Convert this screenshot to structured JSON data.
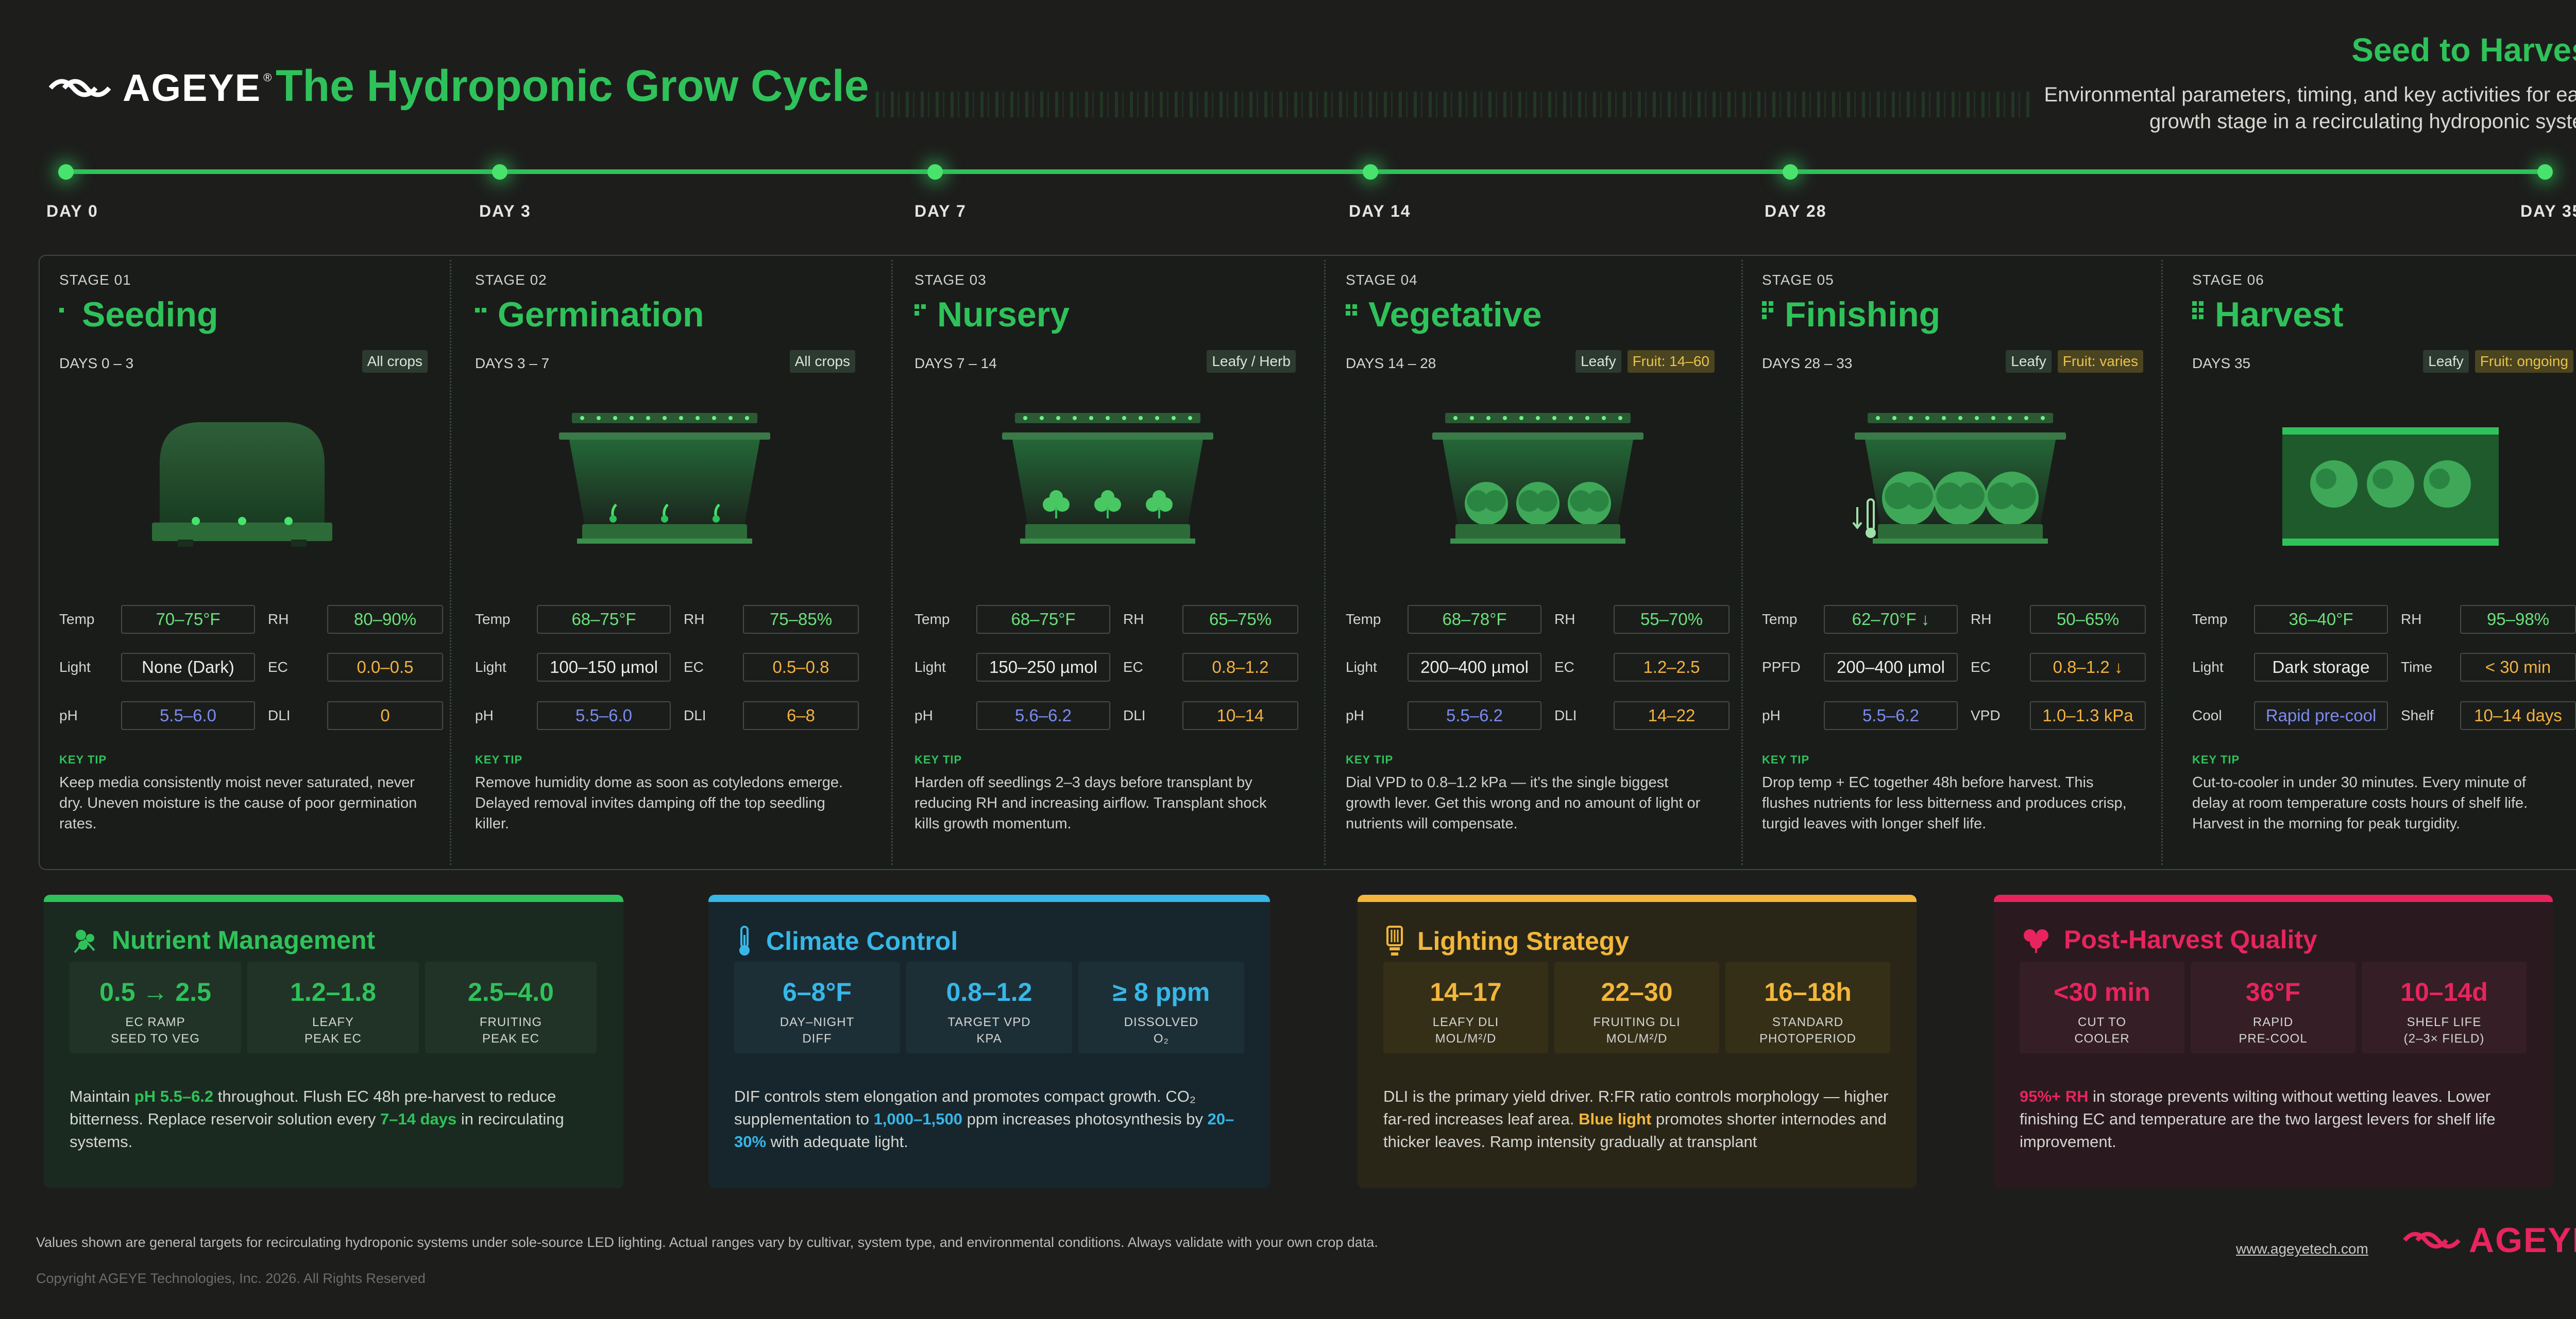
{
  "header": {
    "brand": "AGEYE",
    "title": "The Hydroponic Grow Cycle",
    "right_title": "Seed to Harvest",
    "right_subtitle": "Environmental parameters, timing, and key activities for each growth stage in a recirculating hydroponic system"
  },
  "timeline": [
    "DAY  0",
    "DAY  3",
    "DAY  7",
    "DAY 14",
    "DAY 28",
    "DAY 35"
  ],
  "labels": {
    "key_tip": "KEY TIP"
  },
  "stages": [
    {
      "no": "STAGE 01",
      "name": "Seeding",
      "days": "DAYS  0 – 3",
      "tags": [
        "All crops"
      ],
      "params": [
        {
          "label": "Temp",
          "value": "70–75°F"
        },
        {
          "label": "RH",
          "value": "80–90%"
        },
        {
          "label": "Light",
          "value": "None (Dark)"
        },
        {
          "label": "EC",
          "value": "0.0–0.5"
        },
        {
          "label": "pH",
          "value": "5.5–6.0"
        },
        {
          "label": "DLI",
          "value": "0"
        }
      ],
      "tip": "Keep media consistently moist  never saturated, never dry. Uneven moisture is the cause of poor germination rates."
    },
    {
      "no": "STAGE 02",
      "name": "Germination",
      "days": "DAYS  3 – 7",
      "tags": [
        "All crops"
      ],
      "params": [
        {
          "label": "Temp",
          "value": "68–75°F"
        },
        {
          "label": "RH",
          "value": "75–85%"
        },
        {
          "label": "Light",
          "value": "100–150 µmol"
        },
        {
          "label": "EC",
          "value": "0.5–0.8"
        },
        {
          "label": "pH",
          "value": "5.5–6.0"
        },
        {
          "label": "DLI",
          "value": "6–8"
        }
      ],
      "tip": "Remove humidity dome as soon as cotyledons emerge. Delayed removal invites damping off  the top seedling killer."
    },
    {
      "no": "STAGE 03",
      "name": "Nursery",
      "days": "DAYS  7 – 14",
      "tags": [
        "Leafy / Herb"
      ],
      "params": [
        {
          "label": "Temp",
          "value": "68–75°F"
        },
        {
          "label": "RH",
          "value": "65–75%"
        },
        {
          "label": "Light",
          "value": "150–250 µmol"
        },
        {
          "label": "EC",
          "value": "0.8–1.2"
        },
        {
          "label": "pH",
          "value": "5.6–6.2"
        },
        {
          "label": "DLI",
          "value": "10–14"
        }
      ],
      "tip": "Harden off seedlings 2–3 days before transplant by reducing RH and increasing airflow. Transplant shock kills growth momentum."
    },
    {
      "no": "STAGE 04",
      "name": "Vegetative",
      "days": "DAYS  14 – 28",
      "tags": [
        "Leafy",
        "Fruit: 14–60"
      ],
      "params": [
        {
          "label": "Temp",
          "value": "68–78°F"
        },
        {
          "label": "RH",
          "value": "55–70%"
        },
        {
          "label": "Light",
          "value": "200–400 µmol"
        },
        {
          "label": "EC",
          "value": "1.2–2.5"
        },
        {
          "label": "pH",
          "value": "5.5–6.2"
        },
        {
          "label": "DLI",
          "value": "14–22"
        }
      ],
      "tip": "Dial VPD to 0.8–1.2 kPa — it's the single biggest growth lever. Get this wrong and no amount of light or nutrients will compensate."
    },
    {
      "no": "STAGE 05",
      "name": "Finishing",
      "days": "DAYS  28 – 33",
      "tags": [
        "Leafy",
        "Fruit: varies"
      ],
      "params": [
        {
          "label": "Temp",
          "value": "62–70°F ↓"
        },
        {
          "label": "RH",
          "value": "50–65%"
        },
        {
          "label": "PPFD",
          "value": "200–400 µmol"
        },
        {
          "label": "EC",
          "value": "0.8–1.2 ↓"
        },
        {
          "label": "pH",
          "value": "5.5–6.2"
        },
        {
          "label": "VPD",
          "value": "1.0–1.3 kPa"
        }
      ],
      "tip": "Drop temp + EC together 48h before harvest. This flushes nutrients for  less bitterness and produces crisp, turgid leaves with longer shelf  life."
    },
    {
      "no": "STAGE 06",
      "name": "Harvest",
      "days": "DAYS  35",
      "tags": [
        "Leafy",
        "Fruit: ongoing"
      ],
      "params": [
        {
          "label": "Temp",
          "value": "36–40°F"
        },
        {
          "label": "RH",
          "value": "95–98%"
        },
        {
          "label": "Light",
          "value": "Dark storage"
        },
        {
          "label": "Time",
          "value": "< 30 min"
        },
        {
          "label": "Cool",
          "value": "Rapid pre-cool"
        },
        {
          "label": "Shelf",
          "value": "10–14 days"
        }
      ],
      "tip": "Cut-to-cooler in under 30 minutes. Every minute of delay at room  temperature costs hours of shelf life. Harvest in the morning for peak  turgidity."
    }
  ],
  "panels": [
    {
      "title": "Nutrient Management",
      "accent": "#2fc25a",
      "metrics": [
        {
          "value": "0.5 → 2.5",
          "label1": "EC RAMP",
          "label2": "SEED TO VEG"
        },
        {
          "value": "1.2–1.8",
          "label1": "LEAFY",
          "label2": "PEAK EC"
        },
        {
          "value": "2.5–4.0",
          "label1": "FRUITING",
          "label2": "PEAK EC"
        }
      ],
      "body": {
        "t1": "Maintain ",
        "h1": "pH 5.5–6.2",
        "t2": " throughout. Flush EC 48h pre-harvest to reduce bitterness. Replace reservoir solution every ",
        "h2": "7–14 days",
        "t3": " in recirculating systems."
      }
    },
    {
      "title": "Climate Control",
      "accent": "#37b7e8",
      "metrics": [
        {
          "value": "6–8°F",
          "label1": "DAY–NIGHT",
          "label2": "DIFF"
        },
        {
          "value": "0.8–1.2",
          "label1": "TARGET VPD",
          "label2": "KPA"
        },
        {
          "value": "≥ 8 ppm",
          "label1": "DISSOLVED",
          "label2": "O₂"
        }
      ],
      "body": {
        "t1": "DIF controls stem elongation and promotes compact growth. CO₂ supplementation to ",
        "h1": "1,000–1,500",
        "t2": " ppm increases photosynthesis by ",
        "h2": "20–30%",
        "t3": " with adequate light."
      }
    },
    {
      "title": "Lighting Strategy",
      "accent": "#f2b73a",
      "metrics": [
        {
          "value": "14–17",
          "label1": "LEAFY DLI",
          "label2": "MOL/M²/D"
        },
        {
          "value": "22–30",
          "label1": "FRUITING DLI",
          "label2": "MOL/M²/D"
        },
        {
          "value": "16–18h",
          "label1": "STANDARD",
          "label2": "PHOTOPERIOD"
        }
      ],
      "body": {
        "t1": "DLI is the primary yield driver. R:FR ratio controls morphology — higher far-red increases leaf area. ",
        "h1": "Blue light",
        "t2": " promotes shorter internodes and thicker leaves. Ramp intensity gradually at transplant",
        "h2": "",
        "t3": ""
      }
    },
    {
      "title": "Post-Harvest Quality",
      "accent": "#e8245e",
      "metrics": [
        {
          "value": "<30 min",
          "label1": "CUT TO",
          "label2": "COOLER"
        },
        {
          "value": "36°F",
          "label1": "RAPID",
          "label2": "PRE-COOL"
        },
        {
          "value": "10–14d",
          "label1": "SHELF LIFE",
          "label2": "(2–3× FIELD)"
        }
      ],
      "body": {
        "t1": "",
        "h1": "95%+ RH",
        "t2": " in storage prevents wilting without wetting leaves. Lower finishing EC and temperature are the two largest levers for shelf life improvement.",
        "h2": "",
        "t3": ""
      }
    }
  ],
  "footer": {
    "disclaimer": "Values shown are general targets for recirculating hydroponic systems under sole-source LED lighting. Actual ranges vary by cultivar, system type, and environmental conditions. Always validate with your own crop data.",
    "copyright": "Copyright AGEYE Technologies, Inc. 2026. All Rights Reserved",
    "url": "www.ageyetech.com",
    "brand": "AGEYE"
  }
}
